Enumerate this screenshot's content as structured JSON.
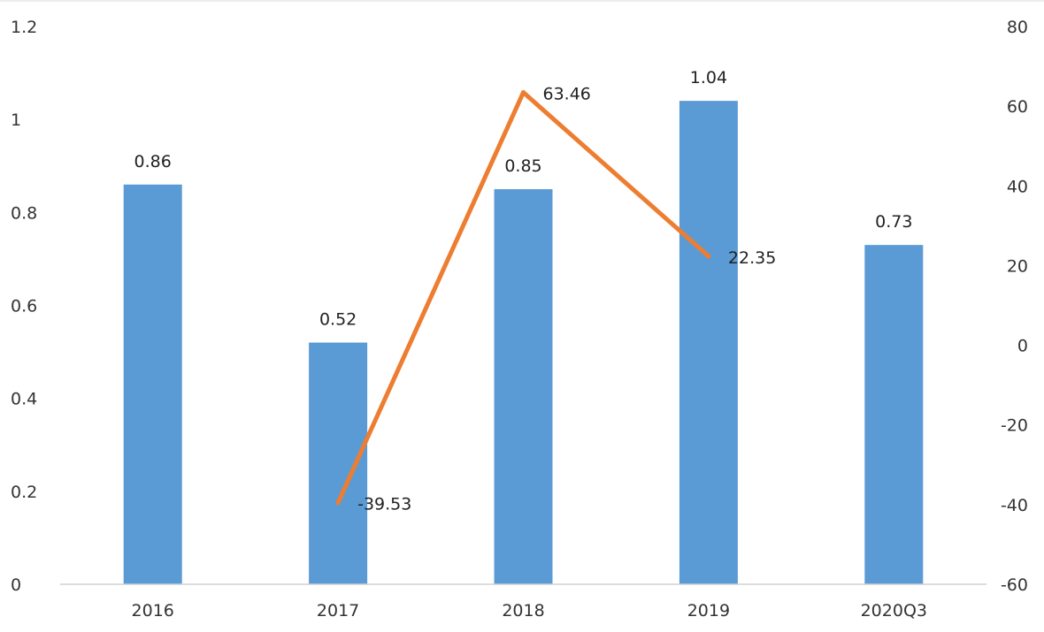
{
  "chart_data": {
    "type": "bar",
    "categories": [
      "2016",
      "2017",
      "2018",
      "2019",
      "2020Q3"
    ],
    "series": [
      {
        "type": "bar",
        "axis": "left",
        "values": [
          0.86,
          0.52,
          0.85,
          1.04,
          0.73
        ],
        "labels": [
          "0.86",
          "0.52",
          "0.85",
          "1.04",
          "0.73"
        ],
        "color": "#5b9bd5"
      },
      {
        "type": "line",
        "axis": "right",
        "values": [
          null,
          -39.53,
          63.46,
          22.35,
          null
        ],
        "labels": [
          "",
          "-39.53",
          "63.46",
          "22.35",
          ""
        ],
        "color": "#ed7d31"
      }
    ],
    "y_left": {
      "min": 0,
      "max": 1.2,
      "ticks": [
        "0",
        "0.2",
        "0.4",
        "0.6",
        "0.8",
        "1",
        "1.2"
      ]
    },
    "y_right": {
      "min": -60,
      "max": 80,
      "ticks": [
        "-60",
        "-40",
        "-20",
        "0",
        "20",
        "40",
        "60",
        "80"
      ]
    },
    "grid": false,
    "legend": "none"
  }
}
